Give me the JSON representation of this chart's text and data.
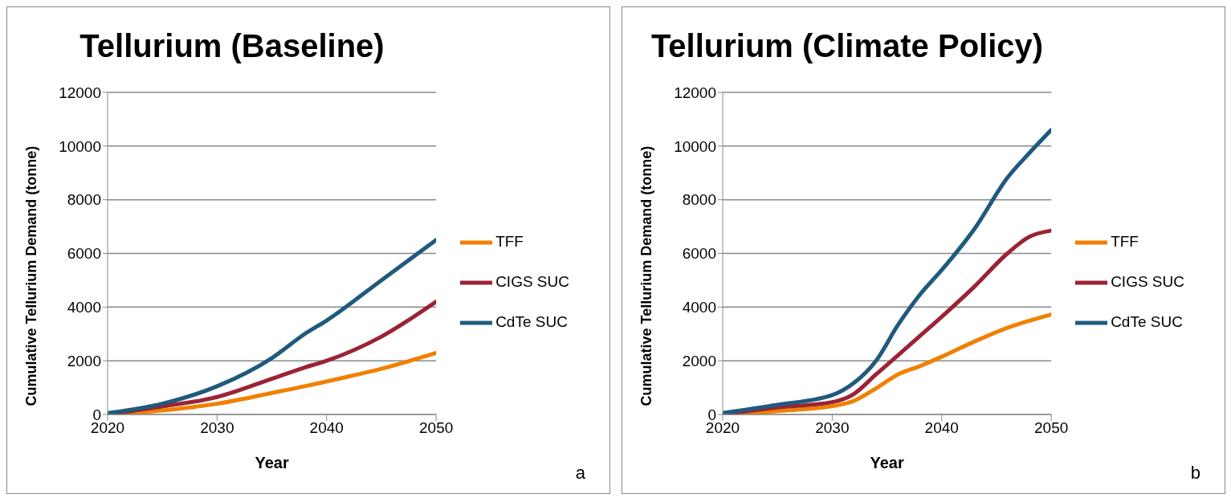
{
  "chart_data": [
    {
      "type": "line",
      "title": "Tellurium (Baseline)",
      "xlabel": "Year",
      "ylabel": "Cumulative Tellurium Demand (tonne)",
      "x": [
        2020,
        2025,
        2030,
        2035,
        2038,
        2040,
        2045,
        2050
      ],
      "xlim": [
        2020,
        2050
      ],
      "xticks": [
        2020,
        2030,
        2040,
        2050
      ],
      "ylim": [
        0,
        12000
      ],
      "yticks": [
        0,
        2000,
        4000,
        6000,
        8000,
        10000,
        12000
      ],
      "grid": "y",
      "legend": "right",
      "marker": "none",
      "line_style": "solid",
      "annotations": [
        "a"
      ],
      "series": [
        {
          "name": "TFF",
          "color": "#f08000",
          "values": [
            0,
            150,
            400,
            800,
            1050,
            1230,
            1700,
            2290
          ]
        },
        {
          "name": "CIGS SUC",
          "color": "#9b2335",
          "values": [
            0,
            300,
            650,
            1330,
            1750,
            2000,
            2900,
            4200
          ]
        },
        {
          "name": "CdTe SUC",
          "color": "#1f5a7d",
          "values": [
            50,
            400,
            1050,
            2100,
            3000,
            3500,
            5000,
            6500
          ]
        }
      ]
    },
    {
      "type": "line",
      "title": "Tellurium (Climate Policy)",
      "xlabel": "Year",
      "ylabel": "Cumulative Tellurium Demand (tonne)",
      "x": [
        2020,
        2025,
        2030,
        2032,
        2034,
        2036,
        2038,
        2040,
        2043,
        2046,
        2048,
        2050
      ],
      "xlim": [
        2020,
        2050
      ],
      "xticks": [
        2020,
        2030,
        2040,
        2050
      ],
      "ylim": [
        0,
        12000
      ],
      "yticks": [
        0,
        2000,
        4000,
        6000,
        8000,
        10000,
        12000
      ],
      "grid": "y",
      "legend": "right",
      "marker": "none",
      "line_style": "solid",
      "annotations": [
        "b"
      ],
      "series": [
        {
          "name": "TFF",
          "color": "#f08000",
          "values": [
            0,
            130,
            310,
            510,
            970,
            1490,
            1800,
            2150,
            2720,
            3230,
            3490,
            3720
          ]
        },
        {
          "name": "CIGS SUC",
          "color": "#9b2335",
          "values": [
            0,
            260,
            460,
            770,
            1490,
            2200,
            2920,
            3640,
            4770,
            6000,
            6620,
            6850
          ]
        },
        {
          "name": "CdTe SUC",
          "color": "#1f5a7d",
          "values": [
            50,
            360,
            720,
            1180,
            2000,
            3330,
            4460,
            5380,
            6920,
            8820,
            9740,
            10600
          ]
        }
      ]
    }
  ]
}
